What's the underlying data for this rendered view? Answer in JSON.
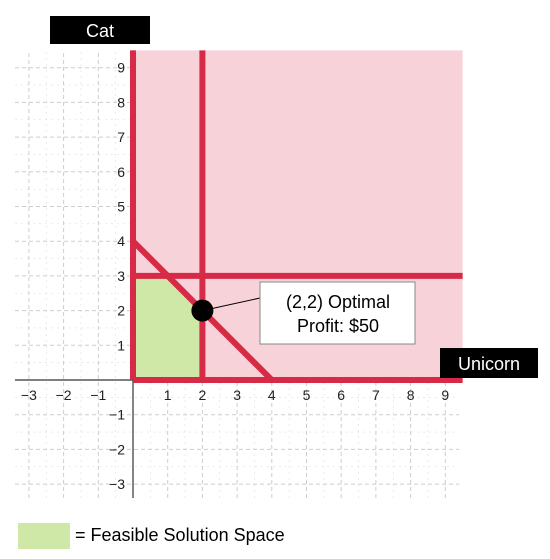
{
  "chart_data": {
    "type": "line",
    "xlabel": "Unicorn",
    "ylabel": "Cat",
    "xlim": [
      -3,
      9
    ],
    "ylim": [
      -3,
      9
    ],
    "x_ticks": [
      -3,
      -2,
      -1,
      1,
      2,
      3,
      4,
      5,
      6,
      7,
      8,
      9
    ],
    "y_ticks": [
      -3,
      -2,
      -1,
      1,
      2,
      3,
      4,
      5,
      6,
      7,
      8,
      9
    ],
    "x_tick_labels": [
      "−3",
      "−2",
      "−1",
      "1",
      "2",
      "3",
      "4",
      "5",
      "6",
      "7",
      "8",
      "9"
    ],
    "y_tick_labels": [
      "−3",
      "−2",
      "−1",
      "1",
      "2",
      "3",
      "4",
      "5",
      "6",
      "7",
      "8",
      "9"
    ],
    "grid": true,
    "constraints": [
      {
        "type": "vertical",
        "x": 2
      },
      {
        "type": "horizontal",
        "y": 3
      },
      {
        "type": "segment",
        "from": [
          0,
          4
        ],
        "to": [
          4,
          0
        ]
      }
    ],
    "shaded_region": {
      "x": [
        0,
        9.5
      ],
      "y": [
        0,
        9.5
      ]
    },
    "feasible_region": [
      [
        0,
        0
      ],
      [
        0,
        3
      ],
      [
        1,
        3
      ],
      [
        2,
        2
      ],
      [
        2,
        0
      ]
    ],
    "optimal_point": {
      "x": 2,
      "y": 2
    },
    "annotation": {
      "line1": "(2,2) Optimal",
      "line2": "Profit: $50"
    },
    "legend": {
      "text": "= Feasible Solution Space",
      "placement": "bottom-left"
    }
  },
  "colors": {
    "constraint": "#d72a47",
    "shade": "#f8d2d9",
    "feasible": "#cfe8a8",
    "grid": "#c8c8c8",
    "label_bg": "#000000",
    "label_text": "#ffffff"
  }
}
